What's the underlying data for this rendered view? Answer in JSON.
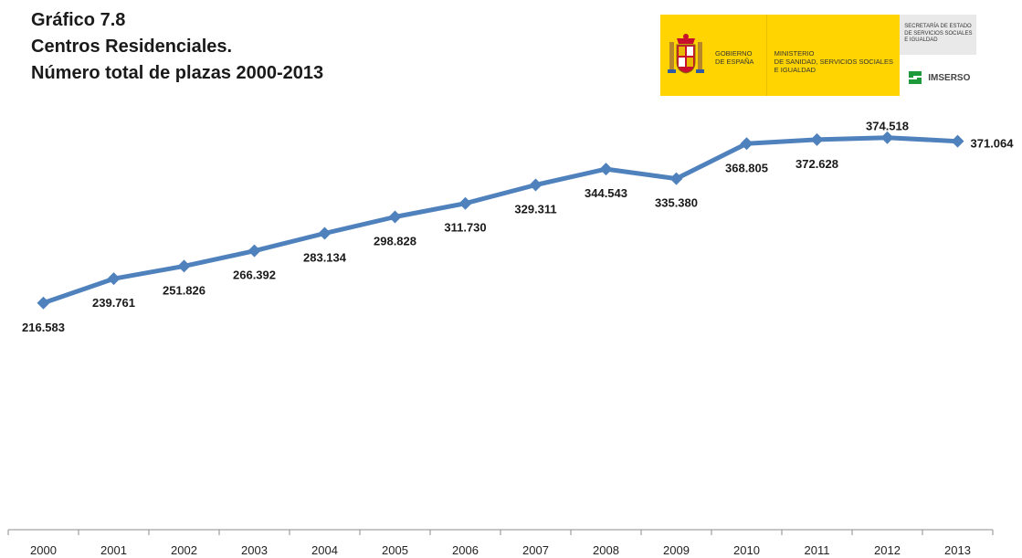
{
  "title": {
    "line1": "Gráfico 7.8",
    "line2": "Centros Residenciales.",
    "line3": "Número total de plazas 2000-2013"
  },
  "logo": {
    "gobierno": [
      "GOBIERNO",
      "DE ESPAÑA"
    ],
    "ministerio": [
      "MINISTERIO",
      "DE SANIDAD, SERVICIOS SOCIALES",
      "E IGUALDAD"
    ],
    "secretaria": [
      "SECRETARÍA DE ESTADO",
      "DE SERVICIOS SOCIALES",
      "E IGUALDAD"
    ],
    "imserso": "IMSERSO",
    "colors": {
      "yellow": "#ffd400",
      "green": "#1f9a3a"
    }
  },
  "chart_data": {
    "type": "line",
    "categories": [
      "2000",
      "2001",
      "2002",
      "2003",
      "2004",
      "2005",
      "2006",
      "2007",
      "2008",
      "2009",
      "2010",
      "2011",
      "2012",
      "2013"
    ],
    "values": [
      216583,
      239761,
      251826,
      266392,
      283134,
      298828,
      311730,
      329311,
      344543,
      335380,
      368805,
      372628,
      374518,
      371064
    ],
    "labels": [
      "216.583",
      "239.761",
      "251.826",
      "266.392",
      "283.134",
      "298.828",
      "311.730",
      "329.311",
      "344.543",
      "335.380",
      "368.805",
      "372.628",
      "374.518",
      "371.064"
    ],
    "label_positions": [
      "below",
      "below",
      "below",
      "below",
      "below",
      "below",
      "below",
      "below",
      "below",
      "below",
      "below",
      "below",
      "above",
      "right"
    ],
    "ylim": [
      0,
      500000
    ],
    "color": "#4f81bd",
    "grid": false
  }
}
